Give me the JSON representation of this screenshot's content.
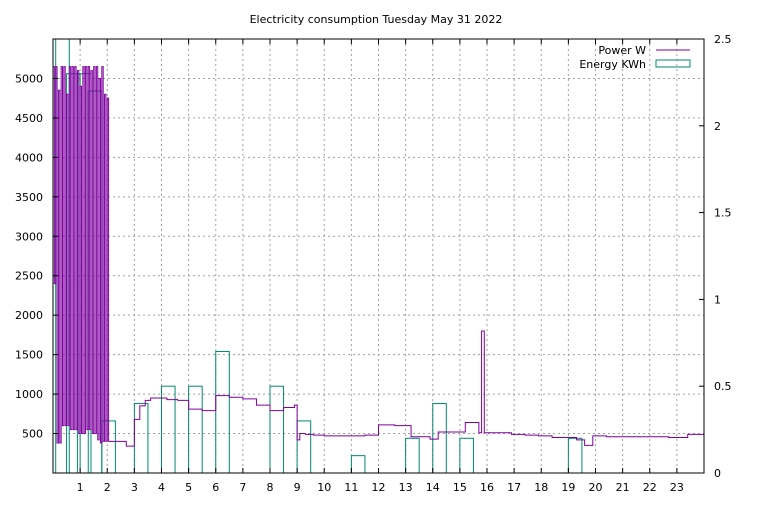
{
  "chart_data": {
    "type": "line",
    "title": "Electricity consumption Tuesday May 31 2022",
    "xlabel": "",
    "ylabel": "",
    "y2label": "",
    "xlim": [
      0,
      24
    ],
    "ylim": [
      0,
      5500
    ],
    "y2lim": [
      0,
      2.5
    ],
    "x_ticks": [
      1,
      2,
      3,
      4,
      5,
      6,
      7,
      8,
      9,
      10,
      11,
      12,
      13,
      14,
      15,
      16,
      17,
      18,
      19,
      20,
      21,
      22,
      23
    ],
    "y_ticks": [
      500,
      1000,
      1500,
      2000,
      2500,
      3000,
      3500,
      4000,
      4500,
      5000
    ],
    "y2_ticks": [
      0,
      0.5,
      1,
      1.5,
      2,
      2.5
    ],
    "y2_tick_labels": [
      "0",
      "0.5",
      "1",
      "1.5",
      "2",
      "2.5"
    ],
    "grid": true,
    "legend_position": "top-right",
    "series": [
      {
        "name": "Power W",
        "axis": "left",
        "style": "steps",
        "color": "#8000a0",
        "x": [
          0,
          0.05,
          0.1,
          0.15,
          0.2,
          0.25,
          0.3,
          0.35,
          0.4,
          0.45,
          0.5,
          0.55,
          0.6,
          0.65,
          0.7,
          0.75,
          0.8,
          0.85,
          0.9,
          0.95,
          1.0,
          1.05,
          1.1,
          1.15,
          1.2,
          1.25,
          1.3,
          1.35,
          1.4,
          1.45,
          1.5,
          1.55,
          1.6,
          1.65,
          1.7,
          1.75,
          1.8,
          1.85,
          1.9,
          1.95,
          2.0,
          2.05,
          2.1,
          2.3,
          2.5,
          2.7,
          2.9,
          3.0,
          3.2,
          3.4,
          3.6,
          3.9,
          4.2,
          4.6,
          5.0,
          5.5,
          6.0,
          6.5,
          7.0,
          7.5,
          8.0,
          8.5,
          8.9,
          9.0,
          9.1,
          9.3,
          9.6,
          10.0,
          10.5,
          11.0,
          11.5,
          12.0,
          12.3,
          12.6,
          12.9,
          13.2,
          13.6,
          13.9,
          14.2,
          14.5,
          14.9,
          15.2,
          15.4,
          15.7,
          15.8,
          15.9,
          16.2,
          16.5,
          16.9,
          17.4,
          17.9,
          18.4,
          18.8,
          19.0,
          19.3,
          19.6,
          19.9,
          20.4,
          21.0,
          21.5,
          22.0,
          22.3,
          22.7,
          23.0,
          23.4,
          24.0
        ],
        "values": [
          5150,
          2400,
          5150,
          380,
          4850,
          380,
          5150,
          600,
          5150,
          600,
          4800,
          600,
          5150,
          550,
          5150,
          550,
          5150,
          550,
          5100,
          500,
          4900,
          500,
          5150,
          500,
          5150,
          550,
          5150,
          550,
          5100,
          500,
          5150,
          500,
          5150,
          420,
          5000,
          380,
          5150,
          400,
          4800,
          400,
          4750,
          400,
          400,
          400,
          400,
          340,
          340,
          680,
          850,
          920,
          950,
          950,
          930,
          920,
          810,
          790,
          980,
          960,
          940,
          860,
          790,
          830,
          860,
          420,
          500,
          490,
          480,
          470,
          470,
          470,
          480,
          610,
          610,
          600,
          600,
          460,
          460,
          430,
          520,
          520,
          520,
          640,
          640,
          510,
          1800,
          510,
          510,
          510,
          490,
          480,
          470,
          450,
          450,
          450,
          420,
          350,
          470,
          460,
          460,
          460,
          460,
          460,
          450,
          450,
          490,
          490
        ]
      },
      {
        "name": "Energy KWh",
        "axis": "right",
        "style": "boxes",
        "color": "#008a70",
        "x": [
          0.1,
          0.5,
          0.9,
          1.3,
          1.8,
          3.0,
          4.0,
          5.0,
          6.0,
          8.0,
          9.0,
          11.0,
          13.0,
          14.0,
          15.0,
          19.0
        ],
        "values": [
          2.5,
          2.3,
          2.3,
          2.2,
          0.3,
          0.4,
          0.5,
          0.5,
          0.7,
          0.5,
          0.3,
          0.1,
          0.2,
          0.4,
          0.2,
          0.2
        ]
      }
    ]
  }
}
